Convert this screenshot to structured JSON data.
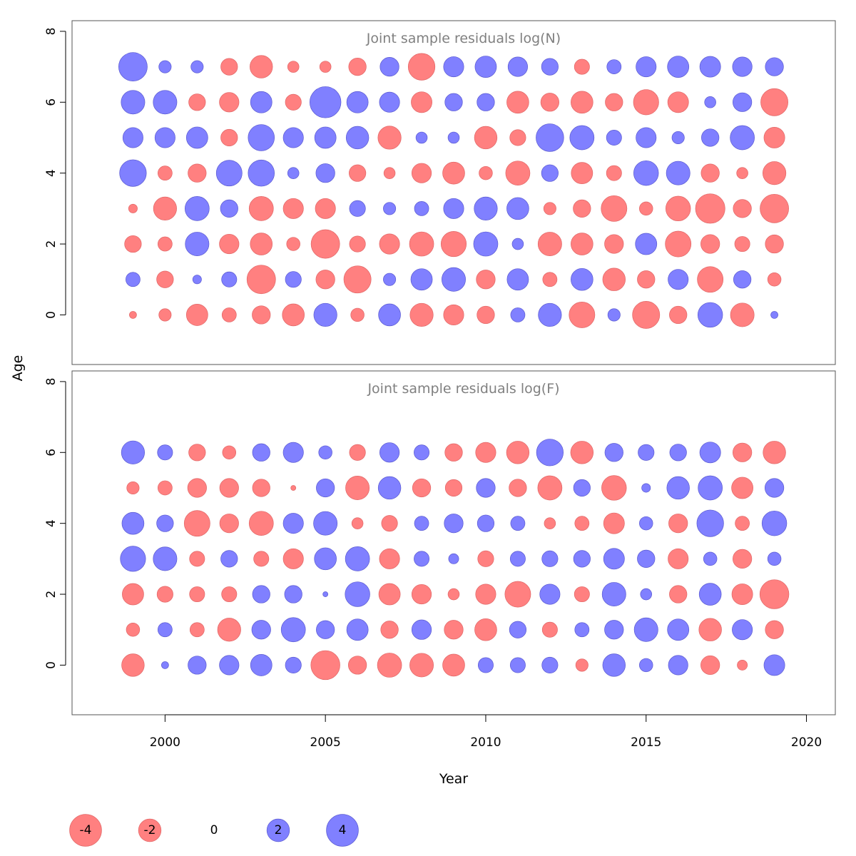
{
  "chart_data": [
    {
      "type": "scatter",
      "subtype": "bubble",
      "title": "Joint sample residuals log(N)",
      "xlabel": "Year",
      "ylabel": "Age",
      "xlim": [
        1997.1,
        2020.9
      ],
      "ylim": [
        -1.4,
        8.3
      ],
      "xticks": [
        2000,
        2005,
        2010,
        2015,
        2020
      ],
      "yticks": [
        0,
        2,
        4,
        6,
        8
      ],
      "years": [
        1999,
        2000,
        2001,
        2002,
        2003,
        2004,
        2005,
        2006,
        2007,
        2008,
        2009,
        2010,
        2011,
        2012,
        2013,
        2014,
        2015,
        2016,
        2017,
        2018,
        2019
      ],
      "ages": [
        0,
        1,
        2,
        3,
        4,
        5,
        6,
        7
      ],
      "residuals": [
        [
          -0.2,
          -0.6,
          -1.8,
          -0.8,
          -1.3,
          -1.9,
          2.1,
          -0.7,
          1.9,
          -2.1,
          -1.6,
          -1.2,
          0.8,
          2.1,
          -2.6,
          0.6,
          -2.9,
          -1.2,
          2.4,
          -2.2,
          0.2
        ],
        [
          0.8,
          -1.1,
          0.3,
          0.9,
          -3.2,
          1.0,
          -1.4,
          -2.9,
          0.6,
          1.8,
          2.2,
          -1.4,
          1.8,
          -0.8,
          1.9,
          -2.0,
          -1.2,
          1.6,
          -2.6,
          1.2,
          -0.7
        ],
        [
          -1.1,
          -0.8,
          2.2,
          -1.5,
          -1.9,
          -0.7,
          -3.2,
          -1.0,
          -1.6,
          -2.3,
          -2.5,
          2.3,
          0.5,
          -2.2,
          -1.9,
          -1.4,
          1.8,
          -2.6,
          -1.4,
          -0.9,
          -1.3
        ],
        [
          -0.3,
          -2.1,
          2.3,
          1.2,
          -2.3,
          -1.6,
          -1.6,
          1.0,
          0.6,
          0.8,
          1.6,
          2.1,
          1.9,
          -0.6,
          -1.2,
          -2.6,
          -0.7,
          -2.4,
          -3.4,
          -1.3,
          -3.2
        ],
        [
          2.8,
          -0.8,
          -1.3,
          2.6,
          2.7,
          0.5,
          1.4,
          -1.1,
          -0.5,
          -1.5,
          -1.9,
          -0.7,
          -2.3,
          1.1,
          -1.8,
          -0.9,
          2.4,
          2.2,
          -1.3,
          -0.5,
          -2.1
        ],
        [
          1.6,
          1.6,
          1.8,
          -1.1,
          2.7,
          1.6,
          1.8,
          2.0,
          -2.1,
          0.5,
          0.5,
          -2.0,
          -1.0,
          3.0,
          2.3,
          0.9,
          1.6,
          0.6,
          1.2,
          2.3,
          -1.7
        ],
        [
          2.2,
          2.2,
          -1.1,
          -1.5,
          1.8,
          -1.0,
          3.8,
          1.8,
          1.6,
          -1.7,
          1.2,
          1.2,
          -1.9,
          -1.3,
          -1.9,
          -1.2,
          -2.5,
          -1.7,
          0.5,
          1.4,
          -2.9
        ],
        [
          3.2,
          0.6,
          0.6,
          -1.1,
          -2.0,
          -0.5,
          -0.5,
          -1.2,
          1.4,
          -2.8,
          1.6,
          1.8,
          1.5,
          1.1,
          -0.9,
          0.8,
          1.6,
          1.8,
          1.7,
          1.5,
          1.3
        ]
      ]
    },
    {
      "type": "scatter",
      "subtype": "bubble",
      "title": "Joint sample residuals log(F)",
      "xlabel": "Year",
      "ylabel": "Age",
      "xlim": [
        1997.1,
        2020.9
      ],
      "ylim": [
        -1.4,
        8.3
      ],
      "xticks": [
        2000,
        2005,
        2010,
        2015,
        2020
      ],
      "yticks": [
        0,
        2,
        4,
        6,
        8
      ],
      "years": [
        1999,
        2000,
        2001,
        2002,
        2003,
        2004,
        2005,
        2006,
        2007,
        2008,
        2009,
        2010,
        2011,
        2012,
        2013,
        2014,
        2015,
        2016,
        2017,
        2018,
        2019
      ],
      "ages": [
        0,
        1,
        2,
        3,
        4,
        5,
        6
      ],
      "residuals": [
        [
          -2.0,
          0.2,
          1.3,
          1.5,
          1.8,
          1.0,
          -3.3,
          -1.3,
          -2.3,
          -2.2,
          -1.9,
          0.9,
          0.9,
          1.0,
          -0.6,
          2.0,
          0.7,
          1.5,
          -1.4,
          -0.4,
          1.7
        ],
        [
          -0.7,
          0.8,
          -0.8,
          -2.1,
          1.4,
          2.3,
          1.3,
          1.8,
          -1.2,
          1.5,
          -1.4,
          -1.9,
          1.1,
          -0.9,
          0.8,
          1.4,
          2.2,
          1.8,
          -2.0,
          1.6,
          -1.3
        ],
        [
          -1.8,
          -1.0,
          -0.9,
          -0.9,
          1.2,
          1.2,
          0.1,
          2.4,
          -1.8,
          -1.5,
          -0.5,
          -1.6,
          -2.6,
          1.6,
          -0.9,
          2.2,
          0.5,
          -1.2,
          1.9,
          -1.7,
          -3.3
        ],
        [
          2.5,
          2.2,
          -0.9,
          1.1,
          -0.9,
          -1.6,
          1.9,
          2.3,
          -1.6,
          0.9,
          0.4,
          -1.0,
          0.9,
          1.0,
          1.1,
          1.7,
          1.2,
          -1.6,
          0.7,
          -1.4,
          0.7
        ],
        [
          1.9,
          1.1,
          -2.6,
          -1.4,
          -2.3,
          1.6,
          2.2,
          -0.5,
          -1.0,
          0.8,
          1.4,
          1.1,
          0.8,
          -0.5,
          -0.8,
          -1.7,
          0.7,
          -1.4,
          2.8,
          -0.8,
          2.4
        ],
        [
          -0.6,
          -0.8,
          -1.4,
          -1.4,
          -1.2,
          -0.1,
          1.3,
          -2.2,
          2.0,
          -1.3,
          -1.1,
          1.4,
          -1.2,
          -2.3,
          1.1,
          -2.4,
          0.3,
          2.0,
          2.3,
          -1.8,
          1.4
        ],
        [
          2.1,
          0.9,
          -1.1,
          -0.7,
          1.2,
          1.6,
          0.7,
          -1.0,
          1.5,
          0.9,
          -1.2,
          -1.6,
          -2.0,
          2.8,
          -2.0,
          1.3,
          1.0,
          1.1,
          1.7,
          -1.4,
          -2.0
        ]
      ]
    }
  ],
  "legend": {
    "values": [
      -4,
      -2,
      0,
      2,
      4
    ],
    "labels": [
      "-4",
      "-2",
      "0",
      "2",
      "4"
    ]
  },
  "colors": {
    "negative": "#ff8080",
    "negative_stroke": "#e06666",
    "positive": "#8080ff",
    "positive_stroke": "#5a5ad0",
    "title": "#808080",
    "axis": "#000000"
  }
}
